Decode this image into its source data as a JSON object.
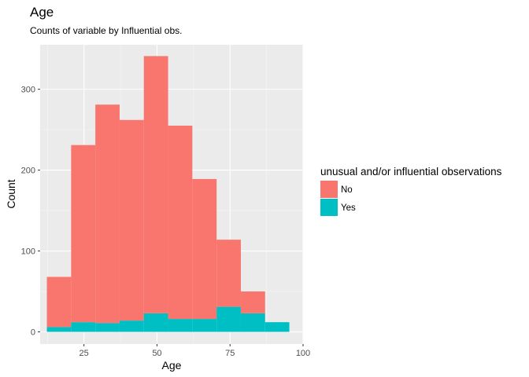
{
  "chart_data": {
    "type": "bar",
    "stacked": true,
    "title": "Age",
    "subtitle": "Counts of variable by Influential obs.",
    "xlabel": "Age",
    "ylabel": "Count",
    "xlim": [
      10,
      100
    ],
    "ylim": [
      -15,
      355
    ],
    "x_ticks": [
      25,
      50,
      75,
      100
    ],
    "y_ticks": [
      0,
      100,
      200,
      300
    ],
    "grid": true,
    "legend_position": "right",
    "legend_title": "unusual and/or influential observations",
    "bins": [
      [
        12.3,
        20.6
      ],
      [
        20.6,
        28.9
      ],
      [
        28.9,
        37.2
      ],
      [
        37.2,
        45.5
      ],
      [
        45.5,
        53.8
      ],
      [
        53.8,
        62.1
      ],
      [
        62.1,
        70.4
      ],
      [
        70.4,
        78.7
      ],
      [
        78.7,
        87.0
      ],
      [
        87.0,
        95.3
      ]
    ],
    "series": [
      {
        "name": "No",
        "color": "#F8766D",
        "values": [
          62,
          219,
          270,
          248,
          318,
          239,
          173,
          83,
          27,
          0
        ]
      },
      {
        "name": "Yes",
        "color": "#00BFC4",
        "values": [
          6,
          12,
          11,
          14,
          23,
          16,
          16,
          31,
          23,
          12
        ]
      }
    ]
  }
}
